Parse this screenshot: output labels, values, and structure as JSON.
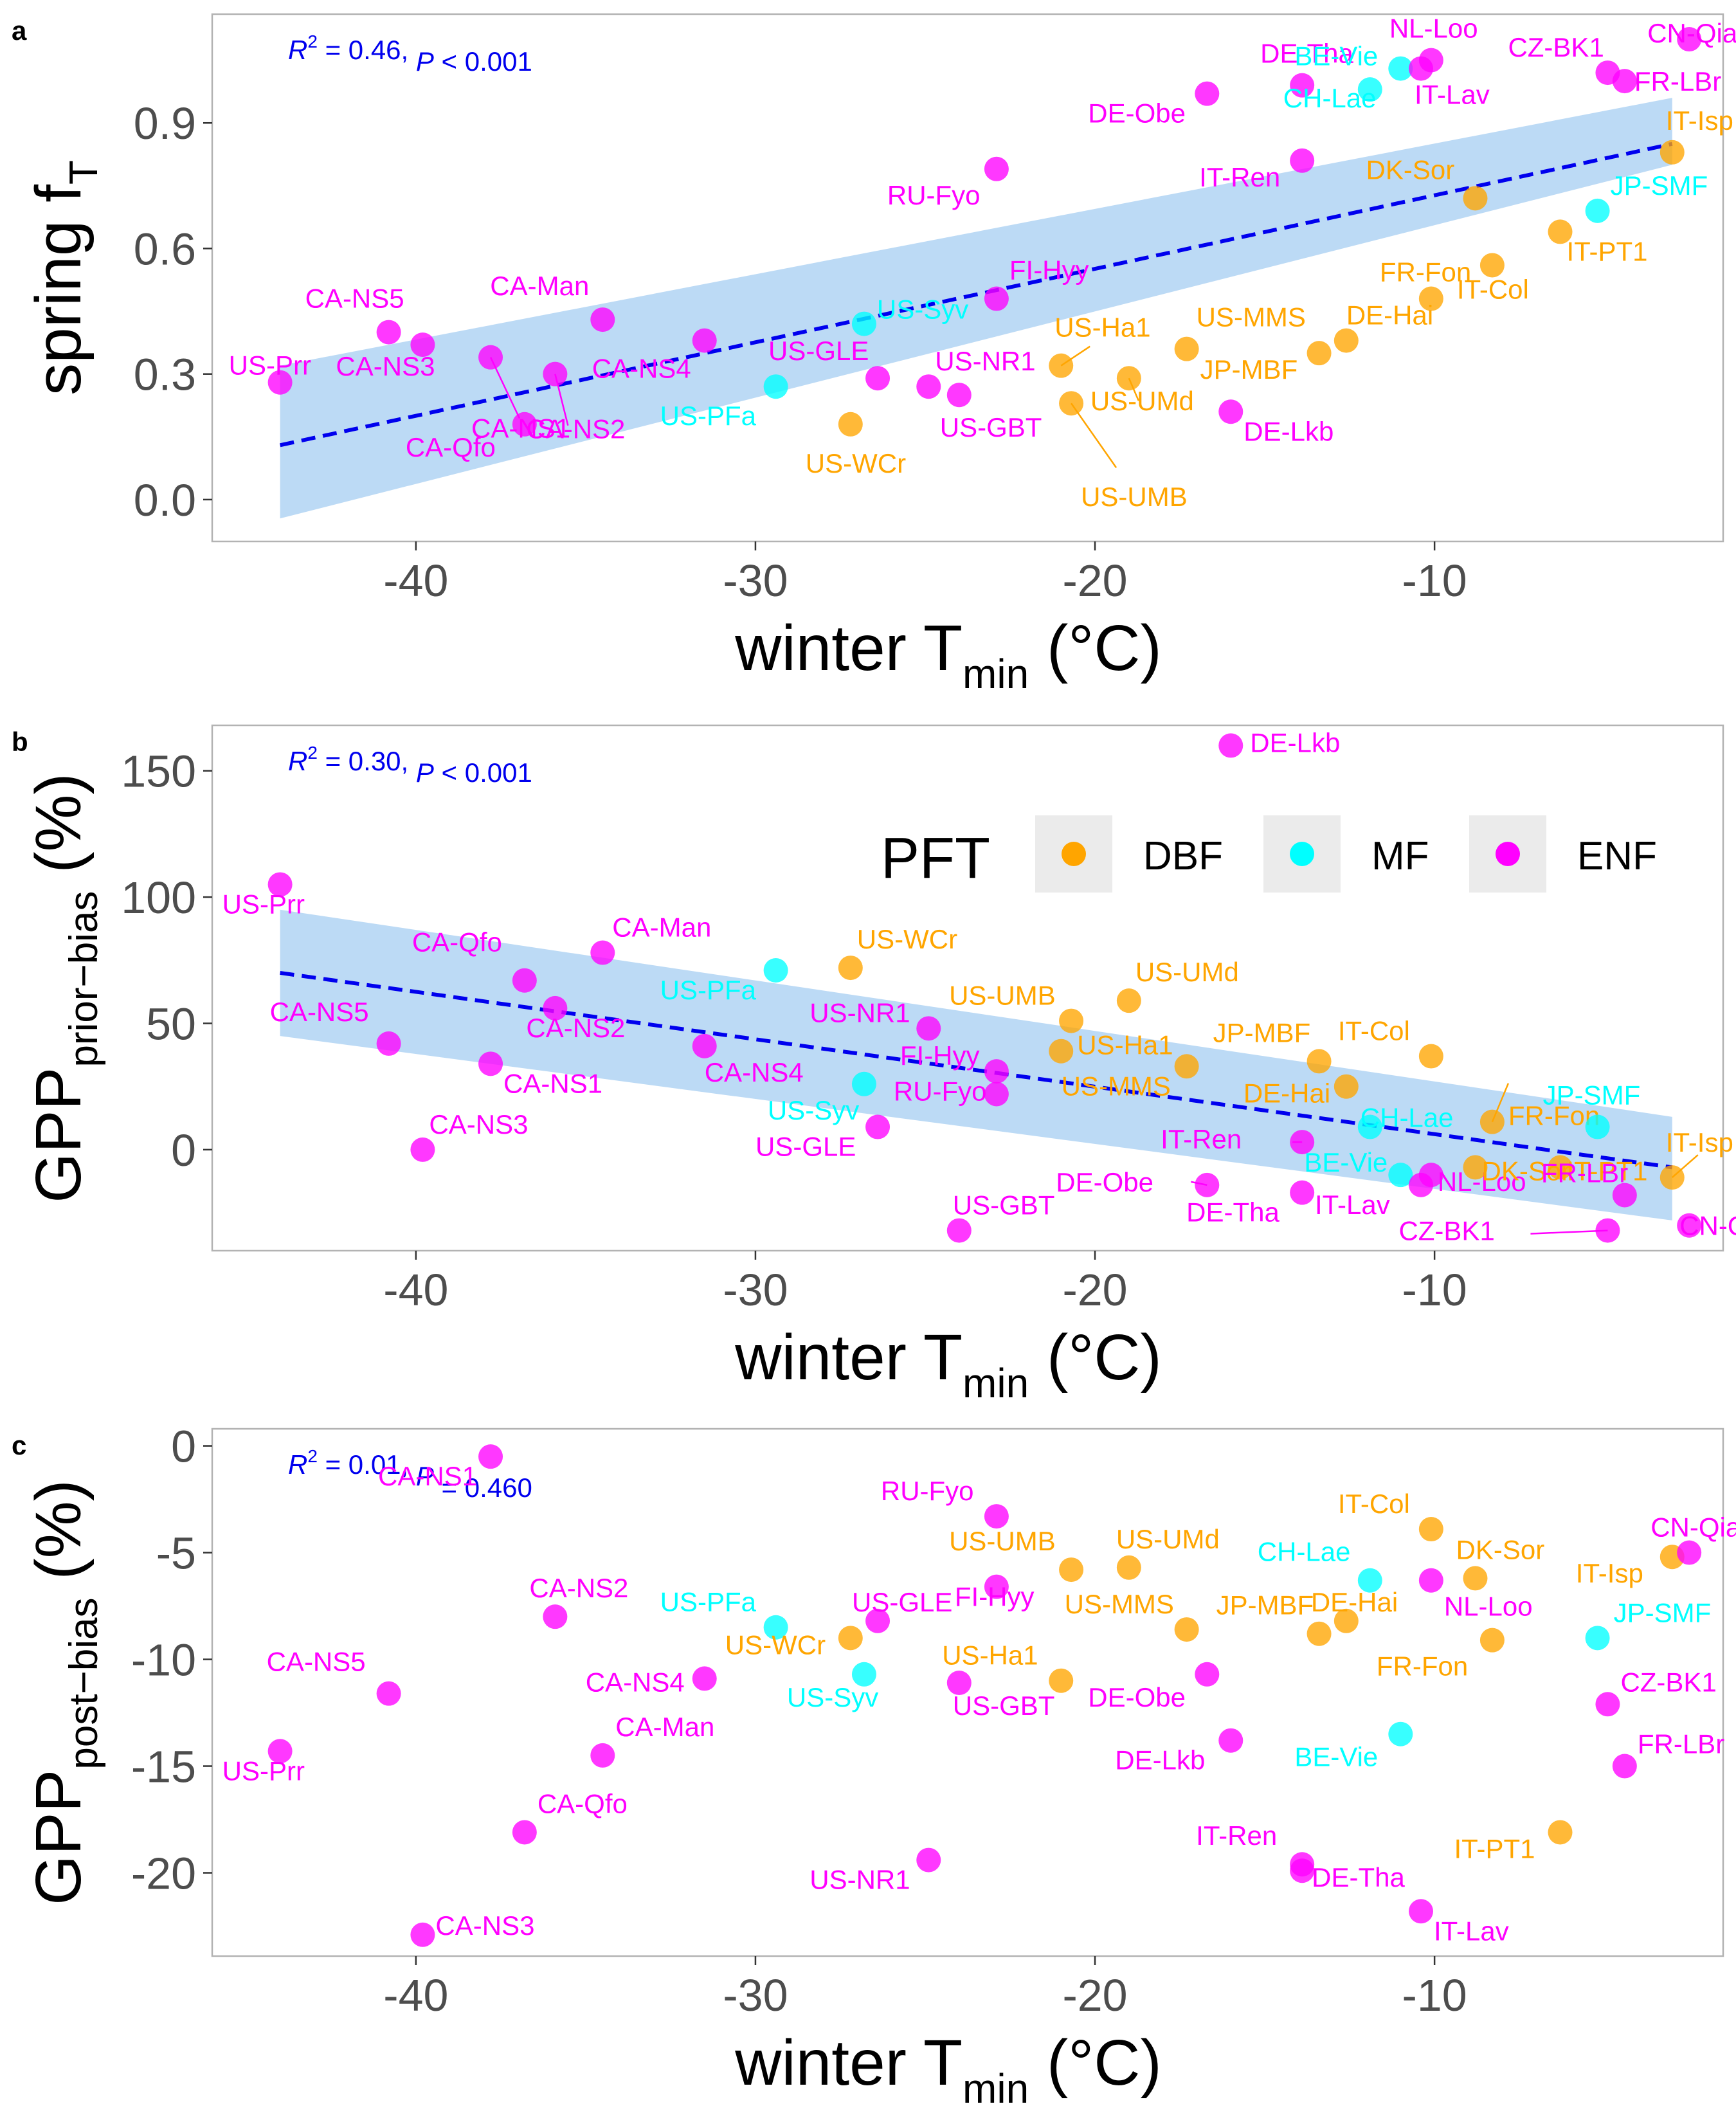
{
  "colors": {
    "DBF": "#FFA500",
    "MF": "#00FFFF",
    "ENF": "#FF00FF",
    "fit_line": "#0000EE",
    "ci_band": "#A6CEF2",
    "panel_border": "#B3B3B3"
  },
  "legend": {
    "title": "PFT",
    "entries": [
      "DBF",
      "MF",
      "ENF"
    ],
    "placement": "inside-top-right of panel b"
  },
  "chart_data": [
    {
      "type": "scatter",
      "panel": "a",
      "xlabel": {
        "main": "winter  T",
        "sub": "min",
        "unit": " (°C)"
      },
      "ylabel": {
        "main": "spring  f",
        "sub": "T",
        "unit": ""
      },
      "xlim": [
        -46,
        -1.5
      ],
      "ylim": [
        -0.1,
        1.16
      ],
      "xticks": [
        -40,
        -30,
        -20,
        -10
      ],
      "yticks": [
        0.0,
        0.3,
        0.6,
        0.9
      ],
      "ytick_labels": [
        "0.0",
        "0.3",
        "0.6",
        "0.9"
      ],
      "stat": {
        "r2": "0.46",
        "p": "< 0.001"
      },
      "fit": {
        "x": [
          -44,
          -3
        ],
        "y": [
          0.13,
          0.85
        ],
        "ci_lower": [
          -0.045,
          0.8
        ],
        "ci_upper": [
          0.32,
          0.96
        ]
      },
      "points": [
        {
          "site": "US-Prr",
          "pft": "ENF",
          "x": -44.0,
          "y": 0.28
        },
        {
          "site": "CA-NS5",
          "pft": "ENF",
          "x": -40.8,
          "y": 0.4
        },
        {
          "site": "CA-NS3",
          "pft": "ENF",
          "x": -39.8,
          "y": 0.37
        },
        {
          "site": "CA-NS1",
          "pft": "ENF",
          "x": -37.8,
          "y": 0.34
        },
        {
          "site": "CA-Qfo",
          "pft": "ENF",
          "x": -36.8,
          "y": 0.18
        },
        {
          "site": "CA-NS2",
          "pft": "ENF",
          "x": -35.9,
          "y": 0.3
        },
        {
          "site": "CA-Man",
          "pft": "ENF",
          "x": -34.5,
          "y": 0.43
        },
        {
          "site": "CA-NS4",
          "pft": "ENF",
          "x": -31.5,
          "y": 0.38
        },
        {
          "site": "US-PFa",
          "pft": "MF",
          "x": -29.4,
          "y": 0.27
        },
        {
          "site": "US-WCr",
          "pft": "DBF",
          "x": -27.2,
          "y": 0.18
        },
        {
          "site": "US-Syv",
          "pft": "MF",
          "x": -26.8,
          "y": 0.42
        },
        {
          "site": "US-GLE",
          "pft": "ENF",
          "x": -26.4,
          "y": 0.29
        },
        {
          "site": "US-NR1",
          "pft": "ENF",
          "x": -24.9,
          "y": 0.27
        },
        {
          "site": "US-GBT",
          "pft": "ENF",
          "x": -24.0,
          "y": 0.25
        },
        {
          "site": "FI-Hyy",
          "pft": "ENF",
          "x": -22.9,
          "y": 0.48
        },
        {
          "site": "RU-Fyo",
          "pft": "ENF",
          "x": -22.9,
          "y": 0.79
        },
        {
          "site": "US-Ha1",
          "pft": "DBF",
          "x": -21.0,
          "y": 0.32
        },
        {
          "site": "US-UMB",
          "pft": "DBF",
          "x": -20.7,
          "y": 0.23
        },
        {
          "site": "US-UMd",
          "pft": "DBF",
          "x": -19.0,
          "y": 0.29
        },
        {
          "site": "US-MMS",
          "pft": "DBF",
          "x": -17.3,
          "y": 0.36
        },
        {
          "site": "DE-Obe",
          "pft": "ENF",
          "x": -16.7,
          "y": 0.97
        },
        {
          "site": "DE-Lkb",
          "pft": "ENF",
          "x": -16.0,
          "y": 0.21
        },
        {
          "site": "IT-Ren",
          "pft": "ENF",
          "x": -13.9,
          "y": 0.81
        },
        {
          "site": "DE-Tha",
          "pft": "ENF",
          "x": -13.9,
          "y": 0.99
        },
        {
          "site": "JP-MBF",
          "pft": "DBF",
          "x": -13.4,
          "y": 0.35
        },
        {
          "site": "DE-Hai",
          "pft": "DBF",
          "x": -12.6,
          "y": 0.38
        },
        {
          "site": "CH-Lae",
          "pft": "MF",
          "x": -11.9,
          "y": 0.98
        },
        {
          "site": "BE-Vie",
          "pft": "MF",
          "x": -11.0,
          "y": 1.03
        },
        {
          "site": "IT-Lav",
          "pft": "ENF",
          "x": -10.4,
          "y": 1.03
        },
        {
          "site": "NL-Loo",
          "pft": "ENF",
          "x": -10.1,
          "y": 1.05
        },
        {
          "site": "IT-Col",
          "pft": "DBF",
          "x": -10.1,
          "y": 0.48
        },
        {
          "site": "DK-Sor",
          "pft": "DBF",
          "x": -8.8,
          "y": 0.72
        },
        {
          "site": "FR-Fon",
          "pft": "DBF",
          "x": -8.3,
          "y": 0.56
        },
        {
          "site": "IT-PT1",
          "pft": "DBF",
          "x": -6.3,
          "y": 0.64
        },
        {
          "site": "JP-SMF",
          "pft": "MF",
          "x": -5.2,
          "y": 0.69
        },
        {
          "site": "CZ-BK1",
          "pft": "ENF",
          "x": -4.9,
          "y": 1.02
        },
        {
          "site": "FR-LBr",
          "pft": "ENF",
          "x": -4.4,
          "y": 1.0
        },
        {
          "site": "IT-Isp",
          "pft": "DBF",
          "x": -3.0,
          "y": 0.83
        },
        {
          "site": "CN-Qia",
          "pft": "ENF",
          "x": -2.5,
          "y": 1.1
        }
      ]
    },
    {
      "type": "scatter",
      "panel": "b",
      "xlabel": {
        "main": "winter  T",
        "sub": "min",
        "unit": " (°C)"
      },
      "ylabel": {
        "main": "GPP",
        "sub": "prior−bias",
        "unit": " (%)"
      },
      "xlim": [
        -46,
        -1.5
      ],
      "ylim": [
        -40,
        168
      ],
      "xticks": [
        -40,
        -30,
        -20,
        -10
      ],
      "yticks": [
        0,
        50,
        100,
        150
      ],
      "ytick_labels": [
        "0",
        "50",
        "100",
        "150"
      ],
      "stat": {
        "r2": "0.30",
        "p": "< 0.001"
      },
      "fit": {
        "x": [
          -44,
          -3
        ],
        "y": [
          70,
          -7
        ],
        "ci_lower": [
          45,
          -28
        ],
        "ci_upper": [
          95,
          13
        ]
      },
      "points": [
        {
          "site": "US-Prr",
          "pft": "ENF",
          "x": -44.0,
          "y": 105
        },
        {
          "site": "CA-NS5",
          "pft": "ENF",
          "x": -40.8,
          "y": 42
        },
        {
          "site": "CA-NS3",
          "pft": "ENF",
          "x": -39.8,
          "y": 0
        },
        {
          "site": "CA-NS1",
          "pft": "ENF",
          "x": -37.8,
          "y": 34
        },
        {
          "site": "CA-Qfo",
          "pft": "ENF",
          "x": -36.8,
          "y": 67
        },
        {
          "site": "CA-NS2",
          "pft": "ENF",
          "x": -35.9,
          "y": 56
        },
        {
          "site": "CA-Man",
          "pft": "ENF",
          "x": -34.5,
          "y": 78
        },
        {
          "site": "CA-NS4",
          "pft": "ENF",
          "x": -31.5,
          "y": 41
        },
        {
          "site": "US-PFa",
          "pft": "MF",
          "x": -29.4,
          "y": 71
        },
        {
          "site": "US-WCr",
          "pft": "DBF",
          "x": -27.2,
          "y": 72
        },
        {
          "site": "US-Syv",
          "pft": "MF",
          "x": -26.8,
          "y": 26
        },
        {
          "site": "US-GLE",
          "pft": "ENF",
          "x": -26.4,
          "y": 9
        },
        {
          "site": "US-NR1",
          "pft": "ENF",
          "x": -24.9,
          "y": 48
        },
        {
          "site": "US-GBT",
          "pft": "ENF",
          "x": -24.0,
          "y": -32
        },
        {
          "site": "FI-Hyy",
          "pft": "ENF",
          "x": -22.9,
          "y": 31
        },
        {
          "site": "RU-Fyo",
          "pft": "ENF",
          "x": -22.9,
          "y": 22
        },
        {
          "site": "US-Ha1",
          "pft": "DBF",
          "x": -21.0,
          "y": 39
        },
        {
          "site": "US-UMB",
          "pft": "DBF",
          "x": -20.7,
          "y": 51
        },
        {
          "site": "US-UMd",
          "pft": "DBF",
          "x": -19.0,
          "y": 59
        },
        {
          "site": "US-MMS",
          "pft": "DBF",
          "x": -17.3,
          "y": 33
        },
        {
          "site": "DE-Obe",
          "pft": "ENF",
          "x": -16.7,
          "y": -14
        },
        {
          "site": "DE-Lkb",
          "pft": "ENF",
          "x": -16.0,
          "y": 160
        },
        {
          "site": "IT-Ren",
          "pft": "ENF",
          "x": -13.9,
          "y": 3
        },
        {
          "site": "DE-Tha",
          "pft": "ENF",
          "x": -13.9,
          "y": -17
        },
        {
          "site": "JP-MBF",
          "pft": "DBF",
          "x": -13.4,
          "y": 35
        },
        {
          "site": "DE-Hai",
          "pft": "DBF",
          "x": -12.6,
          "y": 25
        },
        {
          "site": "CH-Lae",
          "pft": "MF",
          "x": -11.9,
          "y": 9
        },
        {
          "site": "BE-Vie",
          "pft": "MF",
          "x": -11.0,
          "y": -10
        },
        {
          "site": "IT-Lav",
          "pft": "ENF",
          "x": -10.4,
          "y": -14
        },
        {
          "site": "NL-Loo",
          "pft": "ENF",
          "x": -10.1,
          "y": -10
        },
        {
          "site": "IT-Col",
          "pft": "DBF",
          "x": -10.1,
          "y": 37
        },
        {
          "site": "DK-Sor",
          "pft": "DBF",
          "x": -8.8,
          "y": -7
        },
        {
          "site": "FR-Fon",
          "pft": "DBF",
          "x": -8.3,
          "y": 11
        },
        {
          "site": "IT-PT1",
          "pft": "DBF",
          "x": -6.3,
          "y": -7
        },
        {
          "site": "JP-SMF",
          "pft": "MF",
          "x": -5.2,
          "y": 9
        },
        {
          "site": "CZ-BK1",
          "pft": "ENF",
          "x": -4.9,
          "y": -32
        },
        {
          "site": "FR-LBr",
          "pft": "ENF",
          "x": -4.4,
          "y": -18
        },
        {
          "site": "IT-Isp",
          "pft": "DBF",
          "x": -3.0,
          "y": -11
        },
        {
          "site": "CN-Qia",
          "pft": "ENF",
          "x": -2.5,
          "y": -30
        }
      ]
    },
    {
      "type": "scatter",
      "panel": "c",
      "xlabel": {
        "main": "winter  T",
        "sub": "min",
        "unit": " (°C)"
      },
      "ylabel": {
        "main": "GPP",
        "sub": "post−bias",
        "unit": " (%)"
      },
      "xlim": [
        -46,
        -1.5
      ],
      "ylim": [
        -23.9,
        0.8
      ],
      "xticks": [
        -40,
        -30,
        -20,
        -10
      ],
      "yticks": [
        0,
        -5,
        -10,
        -15,
        -20
      ],
      "ytick_labels": [
        "0",
        "-5",
        "-10",
        "-15",
        "-20"
      ],
      "stat": {
        "r2": "0.01",
        "p": "= 0.460"
      },
      "points": [
        {
          "site": "US-Prr",
          "pft": "ENF",
          "x": -44.0,
          "y": -14.3
        },
        {
          "site": "CA-NS5",
          "pft": "ENF",
          "x": -40.8,
          "y": -11.6
        },
        {
          "site": "CA-NS3",
          "pft": "ENF",
          "x": -39.8,
          "y": -22.9
        },
        {
          "site": "CA-NS1",
          "pft": "ENF",
          "x": -37.8,
          "y": -0.5
        },
        {
          "site": "CA-Qfo",
          "pft": "ENF",
          "x": -36.8,
          "y": -18.1
        },
        {
          "site": "CA-NS2",
          "pft": "ENF",
          "x": -35.9,
          "y": -8.0
        },
        {
          "site": "CA-Man",
          "pft": "ENF",
          "x": -34.5,
          "y": -14.5
        },
        {
          "site": "CA-NS4",
          "pft": "ENF",
          "x": -31.5,
          "y": -10.9
        },
        {
          "site": "US-PFa",
          "pft": "MF",
          "x": -29.4,
          "y": -8.5
        },
        {
          "site": "US-WCr",
          "pft": "DBF",
          "x": -27.2,
          "y": -9.0
        },
        {
          "site": "US-Syv",
          "pft": "MF",
          "x": -26.8,
          "y": -10.7
        },
        {
          "site": "US-GLE",
          "pft": "ENF",
          "x": -26.4,
          "y": -8.2
        },
        {
          "site": "US-NR1",
          "pft": "ENF",
          "x": -24.9,
          "y": -19.4
        },
        {
          "site": "US-GBT",
          "pft": "ENF",
          "x": -24.0,
          "y": -11.1
        },
        {
          "site": "FI-Hyy",
          "pft": "ENF",
          "x": -22.9,
          "y": -6.6
        },
        {
          "site": "RU-Fyo",
          "pft": "ENF",
          "x": -22.9,
          "y": -3.3
        },
        {
          "site": "US-Ha1",
          "pft": "DBF",
          "x": -21.0,
          "y": -11.0
        },
        {
          "site": "US-UMB",
          "pft": "DBF",
          "x": -20.7,
          "y": -5.8
        },
        {
          "site": "US-UMd",
          "pft": "DBF",
          "x": -19.0,
          "y": -5.7
        },
        {
          "site": "US-MMS",
          "pft": "DBF",
          "x": -17.3,
          "y": -8.6
        },
        {
          "site": "DE-Obe",
          "pft": "ENF",
          "x": -16.7,
          "y": -10.7
        },
        {
          "site": "DE-Lkb",
          "pft": "ENF",
          "x": -16.0,
          "y": -13.8
        },
        {
          "site": "IT-Ren",
          "pft": "ENF",
          "x": -13.9,
          "y": -19.6
        },
        {
          "site": "DE-Tha",
          "pft": "ENF",
          "x": -13.9,
          "y": -19.9
        },
        {
          "site": "JP-MBF",
          "pft": "DBF",
          "x": -13.4,
          "y": -8.8
        },
        {
          "site": "DE-Hai",
          "pft": "DBF",
          "x": -12.6,
          "y": -8.2
        },
        {
          "site": "CH-Lae",
          "pft": "MF",
          "x": -11.9,
          "y": -6.3
        },
        {
          "site": "BE-Vie",
          "pft": "MF",
          "x": -11.0,
          "y": -13.5
        },
        {
          "site": "IT-Lav",
          "pft": "ENF",
          "x": -10.4,
          "y": -21.8
        },
        {
          "site": "NL-Loo",
          "pft": "ENF",
          "x": -10.1,
          "y": -6.3
        },
        {
          "site": "IT-Col",
          "pft": "DBF",
          "x": -10.1,
          "y": -3.9
        },
        {
          "site": "DK-Sor",
          "pft": "DBF",
          "x": -8.8,
          "y": -6.2
        },
        {
          "site": "FR-Fon",
          "pft": "DBF",
          "x": -8.3,
          "y": -9.1
        },
        {
          "site": "IT-PT1",
          "pft": "DBF",
          "x": -6.3,
          "y": -18.1
        },
        {
          "site": "JP-SMF",
          "pft": "MF",
          "x": -5.2,
          "y": -9.0
        },
        {
          "site": "CZ-BK1",
          "pft": "ENF",
          "x": -4.9,
          "y": -12.1
        },
        {
          "site": "FR-LBr",
          "pft": "ENF",
          "x": -4.4,
          "y": -15.0
        },
        {
          "site": "IT-Isp",
          "pft": "DBF",
          "x": -3.0,
          "y": -5.2
        },
        {
          "site": "CN-Qia",
          "pft": "ENF",
          "x": -2.5,
          "y": -5.0
        }
      ]
    }
  ]
}
